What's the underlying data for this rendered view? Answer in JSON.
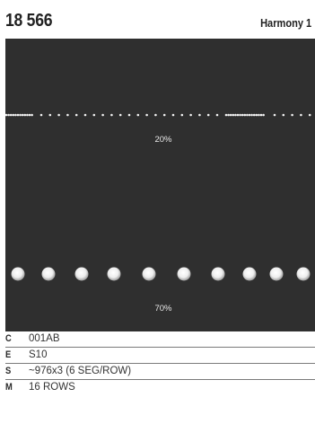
{
  "header": {
    "code": "18 566",
    "collection": "Harmony 1"
  },
  "panel": {
    "background": "#2f2f2f",
    "dot_color": "#f2f2f2",
    "row1_label": "20%",
    "row2_label": "70%"
  },
  "specs": [
    {
      "key": "C",
      "value": "001AB"
    },
    {
      "key": "E",
      "value": "S10"
    },
    {
      "key": "S",
      "value": "~976x3 (6 SEG/ROW)"
    },
    {
      "key": "M",
      "value": "16 ROWS"
    }
  ]
}
